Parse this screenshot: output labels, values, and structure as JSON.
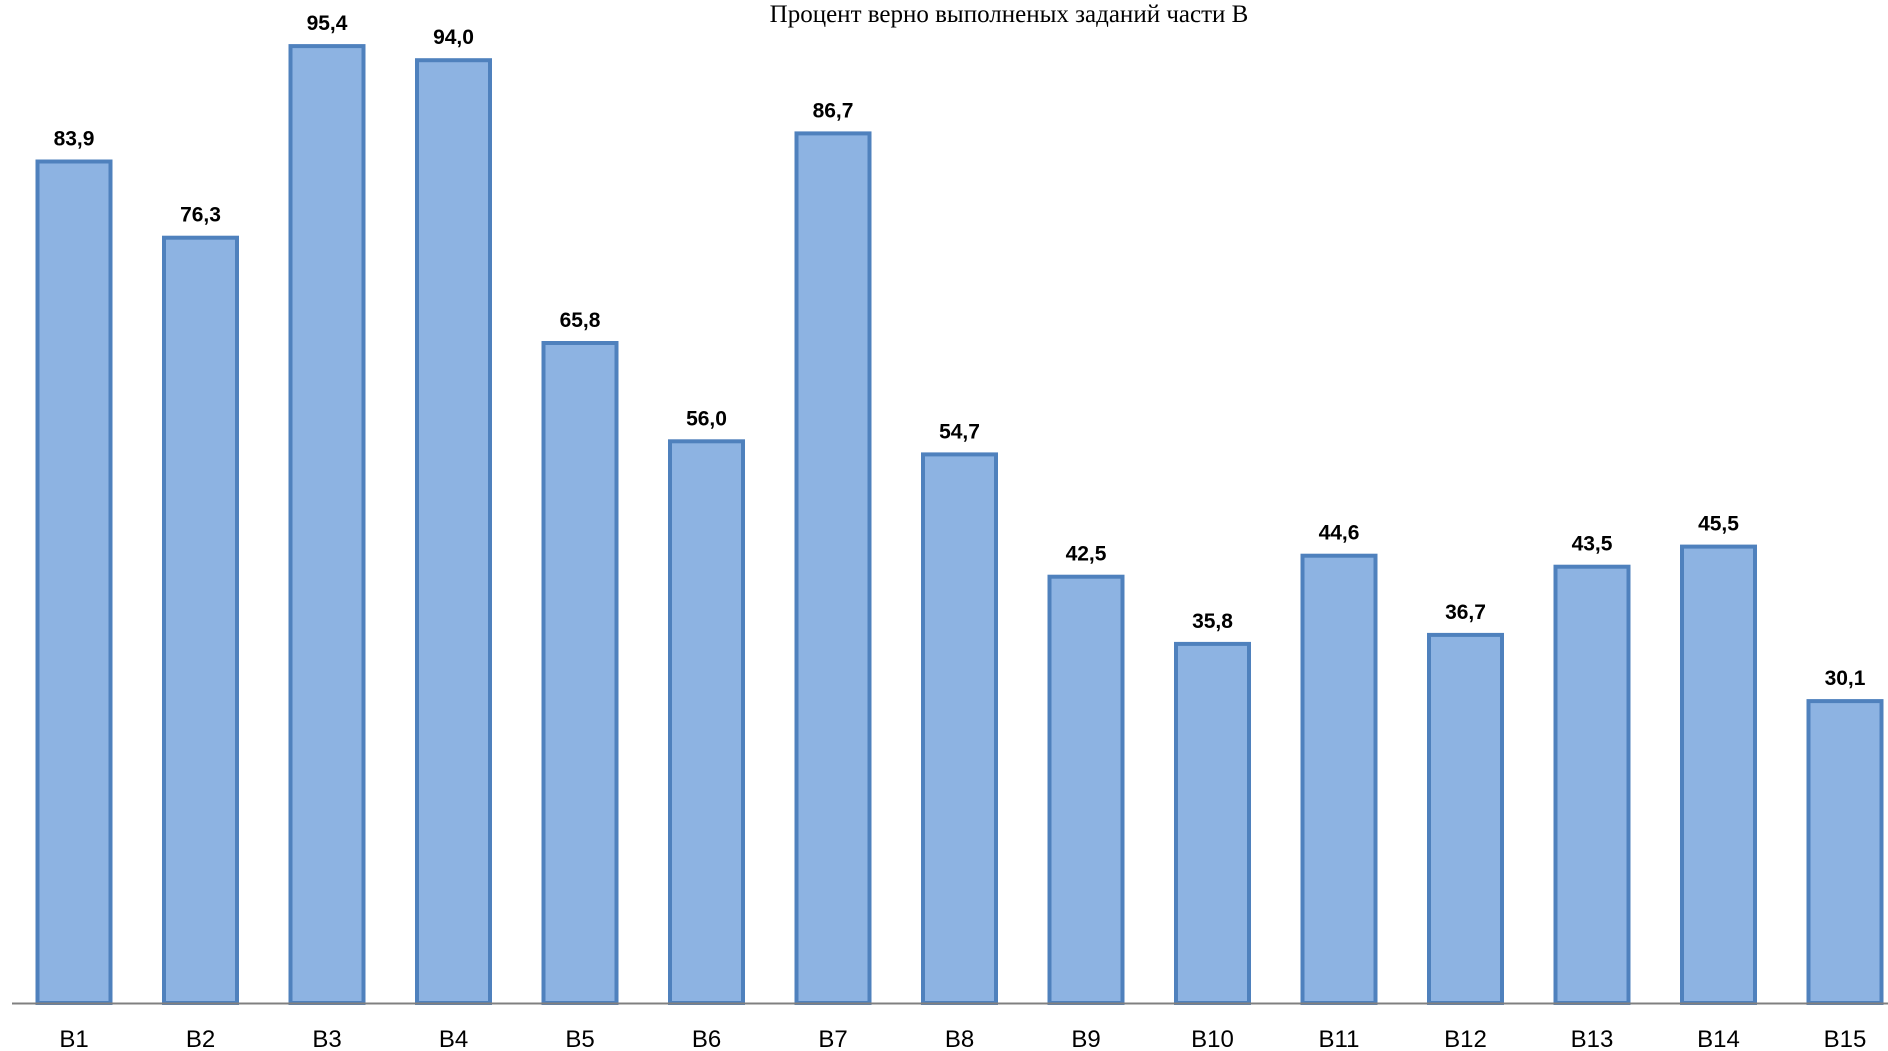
{
  "chart_data": {
    "type": "bar",
    "title": "Процент верно выполненых заданий части В",
    "categories": [
      "B1",
      "B2",
      "B3",
      "B4",
      "B5",
      "B6",
      "B7",
      "B8",
      "B9",
      "B10",
      "B11",
      "B12",
      "B13",
      "B14",
      "B15"
    ],
    "values": [
      83.9,
      76.3,
      95.4,
      94.0,
      65.8,
      56.0,
      86.7,
      54.7,
      42.5,
      35.8,
      44.6,
      36.7,
      43.5,
      45.5,
      30.1
    ],
    "value_labels": [
      "83,9",
      "76,3",
      "95,4",
      "94,0",
      "65,8",
      "56,0",
      "86,7",
      "54,7",
      "42,5",
      "35,8",
      "44,6",
      "36,7",
      "43,5",
      "45,5",
      "30,1"
    ],
    "xlabel": "",
    "ylabel": "",
    "ylim": [
      0,
      100
    ],
    "grid": false,
    "legend": "none",
    "colors": {
      "bar_fill": "#8db3e2",
      "bar_stroke": "#4f81bd",
      "axis": "#808080"
    }
  }
}
